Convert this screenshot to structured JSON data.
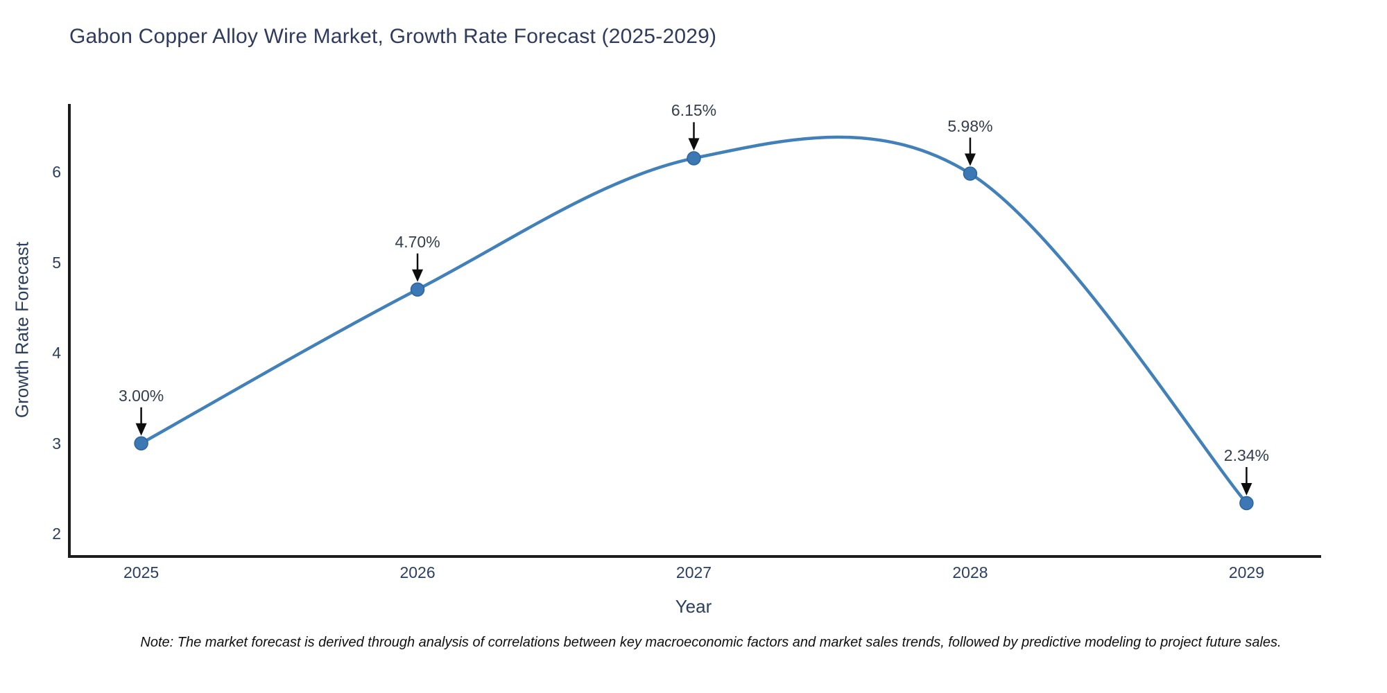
{
  "title": "Gabon Copper Alloy Wire Market, Growth Rate Forecast (2025-2029)",
  "note": "Note: The market forecast is derived through analysis of correlations between key macroeconomic factors and market sales trends, followed by predictive modeling to project future sales.",
  "colors": {
    "line": "#4180b9",
    "marker_fill": "#3c78b4",
    "marker_edge": "#2d649e",
    "axis": "#1c1c1c",
    "arrow": "#0d0d0d",
    "title_text": "#2e3b5e",
    "tick_text": "#2a3f5f",
    "annotation_text": "#333d4d",
    "background": "#ffffff"
  },
  "chart_data": {
    "type": "line",
    "title": "Gabon Copper Alloy Wire Market, Growth Rate Forecast (2025-2029)",
    "xlabel": "Year",
    "ylabel": "Growth Rate Forecast",
    "categories": [
      2025,
      2026,
      2027,
      2028,
      2029
    ],
    "values": [
      3.0,
      4.7,
      6.15,
      5.98,
      2.34
    ],
    "point_labels": [
      "3.00%",
      "4.70%",
      "6.15%",
      "5.98%",
      "2.34%"
    ],
    "yticks": [
      2,
      3,
      4,
      5,
      6
    ],
    "xlim": [
      2024.74,
      2029.27
    ],
    "ylim": [
      1.75,
      6.75
    ],
    "grid": false,
    "legend": "none",
    "line_style": "smooth-spline",
    "annotation_style": "value-above-with-down-arrow"
  }
}
